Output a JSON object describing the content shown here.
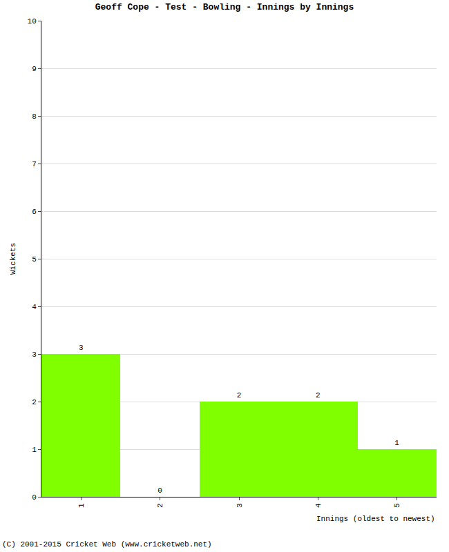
{
  "chart_data": {
    "type": "bar",
    "title": "Geoff Cope - Test - Bowling - Innings by Innings",
    "x_label": "Innings (oldest to newest)",
    "y_label": "Wickets",
    "categories": [
      "1",
      "2",
      "3",
      "4",
      "5"
    ],
    "values": [
      3,
      0,
      2,
      2,
      1
    ],
    "color": "#7fff00",
    "ylim": [
      0,
      10
    ],
    "yticks": [
      0,
      1,
      2,
      3,
      4,
      5,
      6,
      7,
      8,
      9,
      10
    ],
    "grid": true,
    "data_labels": true,
    "annotations": [
      "(C) 2001-2015 Cricket Web (www.cricketweb.net)"
    ]
  }
}
